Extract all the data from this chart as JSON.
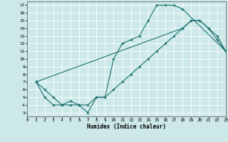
{
  "xlabel": "Humidex (Indice chaleur)",
  "bg_color": "#cce8e8",
  "grid_color": "#ffffff",
  "line_color": "#1a7070",
  "line1_x": [
    1,
    2,
    3,
    4,
    5,
    6,
    7,
    8,
    9,
    10,
    11,
    12,
    13,
    14,
    15,
    16,
    17,
    18,
    23
  ],
  "line1_y": [
    7,
    5,
    4,
    4,
    4.5,
    4,
    3,
    5,
    5,
    10,
    12,
    12.5,
    13,
    15,
    17,
    17,
    17,
    16.5,
    11
  ],
  "line2_x": [
    1,
    2,
    3,
    4,
    5,
    6,
    7,
    8,
    9,
    10,
    11,
    12,
    13,
    14,
    15,
    16,
    17,
    18,
    19,
    20,
    21,
    22,
    23
  ],
  "line2_y": [
    7,
    6,
    5,
    4,
    4,
    4,
    4,
    5,
    5,
    6,
    7,
    8,
    9,
    10,
    11,
    12,
    13,
    14,
    15,
    15,
    14,
    13,
    11
  ],
  "line3_x": [
    1,
    18,
    19,
    20,
    21,
    22,
    23
  ],
  "line3_y": [
    7,
    14,
    15,
    15,
    14,
    12.5,
    11
  ],
  "xlim": [
    0,
    23
  ],
  "ylim": [
    3,
    17
  ],
  "xticks": [
    0,
    1,
    2,
    3,
    4,
    5,
    6,
    7,
    8,
    9,
    10,
    11,
    12,
    13,
    14,
    15,
    16,
    17,
    18,
    19,
    20,
    21,
    22,
    23
  ],
  "yticks": [
    3,
    4,
    5,
    6,
    7,
    8,
    9,
    10,
    11,
    12,
    13,
    14,
    15,
    16,
    17
  ]
}
